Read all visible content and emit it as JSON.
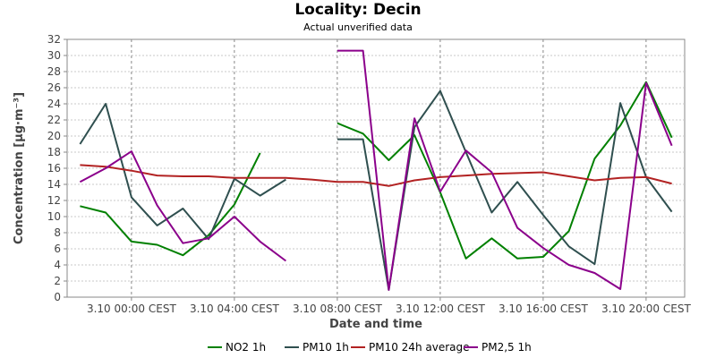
{
  "chart_data": {
    "type": "line",
    "title": "Locality: Decin",
    "subtitle": "Actual unverified data",
    "xlabel": "Date and time",
    "ylabel": "Concentration [µg·m⁻³]",
    "ylim": [
      0,
      32
    ],
    "yticks": [
      0,
      2,
      4,
      6,
      8,
      10,
      12,
      14,
      16,
      18,
      20,
      22,
      24,
      26,
      28,
      30,
      32
    ],
    "x_range_hours": [
      -2.5,
      21.5
    ],
    "x_unit": "hours after 3.10 00:00 CEST",
    "xticks": [
      {
        "hour": 0,
        "label": "3.10 00:00 CEST"
      },
      {
        "hour": 4,
        "label": "3.10 04:00 CEST"
      },
      {
        "hour": 8,
        "label": "3.10 08:00 CEST"
      },
      {
        "hour": 12,
        "label": "3.10 12:00 CEST"
      },
      {
        "hour": 16,
        "label": "3.10 16:00 CEST"
      },
      {
        "hour": 20,
        "label": "3.10 20:00 CEST"
      }
    ],
    "x": [
      -2,
      -1,
      0,
      1,
      2,
      3,
      4,
      5,
      6,
      7,
      8,
      9,
      10,
      11,
      12,
      13,
      14,
      15,
      16,
      17,
      18,
      19,
      20,
      21
    ],
    "grid": true,
    "legend_position": "bottom",
    "series": [
      {
        "name": "NO2 1h",
        "color": "#008000",
        "values": [
          11.3,
          10.5,
          6.9,
          6.5,
          5.2,
          7.7,
          11.5,
          17.9,
          null,
          null,
          21.6,
          20.3,
          17.0,
          20.1,
          13.0,
          4.8,
          7.3,
          4.8,
          5.0,
          8.2,
          17.2,
          21.3,
          26.7,
          19.8
        ]
      },
      {
        "name": "PM10 1h",
        "color": "#2f4f4f",
        "values": [
          19.0,
          24.0,
          12.4,
          8.9,
          11.0,
          7.2,
          14.7,
          12.6,
          14.6,
          null,
          19.6,
          19.6,
          0.9,
          21.1,
          25.6,
          18.0,
          10.5,
          14.3,
          10.2,
          6.3,
          4.1,
          24.1,
          14.9,
          10.6
        ]
      },
      {
        "name": "PM10 24h average",
        "color": "#b22222",
        "values": [
          16.4,
          16.2,
          15.7,
          15.1,
          15.0,
          15.0,
          14.8,
          14.8,
          14.8,
          14.6,
          14.3,
          14.3,
          13.8,
          14.5,
          14.9,
          15.1,
          15.3,
          15.4,
          15.5,
          15.0,
          14.5,
          14.8,
          14.9,
          14.1
        ]
      },
      {
        "name": "PM2,5 1h",
        "color": "#8b008b",
        "values": [
          14.3,
          16.0,
          18.1,
          11.4,
          6.7,
          7.3,
          10.0,
          6.9,
          4.5,
          null,
          30.6,
          30.6,
          0.9,
          22.2,
          13.1,
          18.2,
          15.5,
          8.6,
          6.1,
          4.0,
          3.0,
          1.0,
          26.6,
          18.8
        ]
      }
    ]
  }
}
